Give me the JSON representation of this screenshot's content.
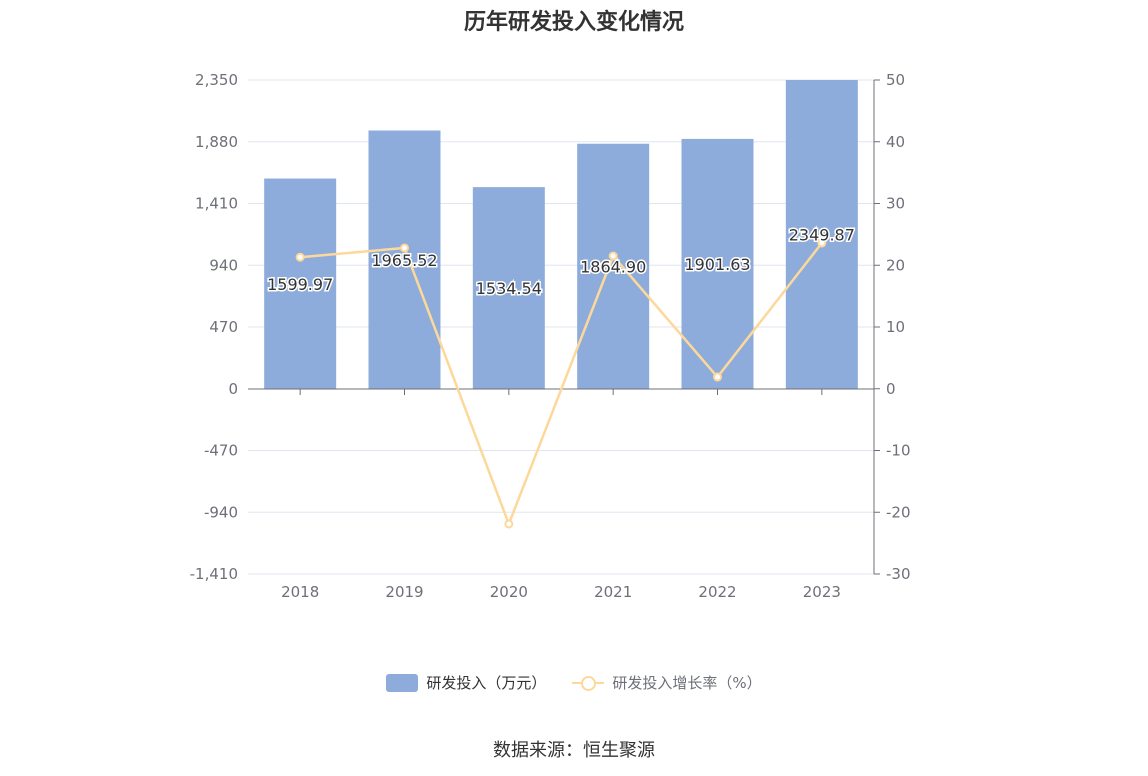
{
  "chart_data": {
    "type": "bar",
    "title": "历年研发投入变化情况",
    "categories": [
      "2018",
      "2019",
      "2020",
      "2021",
      "2022",
      "2023"
    ],
    "series": [
      {
        "name": "研发投入（万元）",
        "type": "bar",
        "axis": "left",
        "values": [
          1599.97,
          1965.52,
          1534.54,
          1864.9,
          1901.63,
          2349.87
        ],
        "labels": [
          "1599.97",
          "1965.52",
          "1534.54",
          "1864.90",
          "1901.63",
          "2349.87"
        ]
      },
      {
        "name": "研发投入增长率（%）",
        "type": "line",
        "axis": "right",
        "values": [
          21.3,
          22.8,
          -21.9,
          21.5,
          1.9,
          23.6
        ]
      }
    ],
    "y_left": {
      "ticks": [
        2350,
        1880,
        1410,
        940,
        470,
        0,
        -470,
        -940,
        -1410
      ],
      "tick_labels": [
        "2,350",
        "1,880",
        "1,410",
        "940",
        "470",
        "0",
        "-470",
        "-940",
        "-1,410"
      ],
      "ylim": [
        -1410,
        2350
      ]
    },
    "y_right": {
      "ticks": [
        50,
        40,
        30,
        20,
        10,
        0,
        -10,
        -20,
        -30
      ],
      "tick_labels": [
        "50",
        "40",
        "30",
        "20",
        "10",
        "0",
        "-10",
        "-20",
        "-30"
      ],
      "ylim": [
        -30,
        50
      ]
    },
    "legend_position": "bottom",
    "grid": true,
    "colors": {
      "bar": "#8eacdb",
      "line": "#fcd89a",
      "grid": "#e0e6f1",
      "axis": "#6e7079"
    }
  },
  "legend": {
    "bar_label": "研发投入（万元）",
    "line_label": "研发投入增长率（%）"
  },
  "source": "数据来源：恒生聚源"
}
